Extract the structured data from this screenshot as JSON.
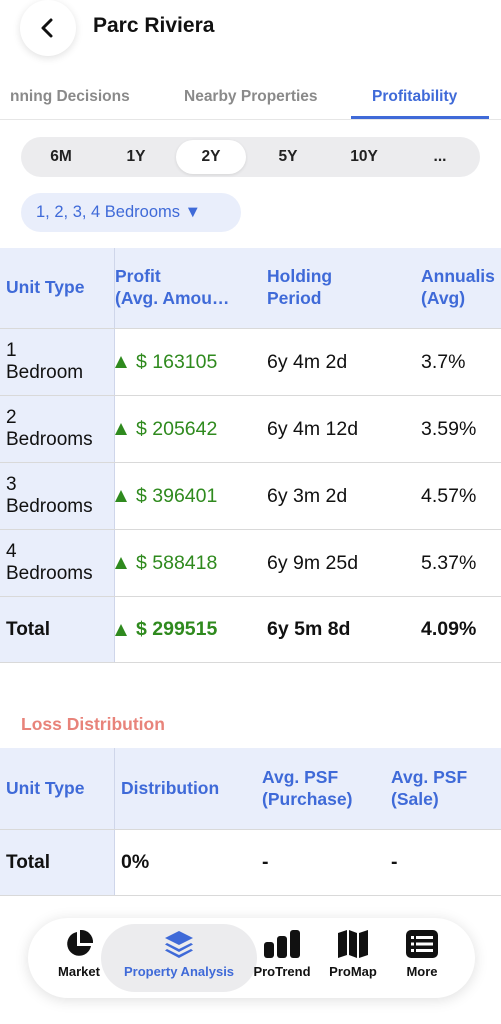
{
  "header": {
    "title": "Parc Riviera",
    "back_icon": "chevron-left-icon"
  },
  "tabs": [
    {
      "label": "nning Decisions",
      "active": false
    },
    {
      "label": "Nearby Properties",
      "active": false
    },
    {
      "label": "Profitability",
      "active": true
    }
  ],
  "periods": [
    {
      "label": "6M",
      "active": false
    },
    {
      "label": "1Y",
      "active": false
    },
    {
      "label": "2Y",
      "active": true
    },
    {
      "label": "5Y",
      "active": false
    },
    {
      "label": "10Y",
      "active": false
    },
    {
      "label": "...",
      "active": false
    }
  ],
  "bedroom_filter": {
    "label": "1, 2, 3, 4 Bedrooms ▼"
  },
  "profit_table": {
    "headers": {
      "unit_type": "Unit Type",
      "profit_1": "Profit",
      "profit_2": "(Avg. Amou…",
      "holding_1": "Holding",
      "holding_2": "Period",
      "annual_1": "Annualis",
      "annual_2": "(Avg)"
    },
    "rows": [
      {
        "unit_1": "1",
        "unit_2": "Bedroom",
        "profit": "$ 163105",
        "holding": "6y 4m 2d",
        "annualised": "3.7%"
      },
      {
        "unit_1": "2",
        "unit_2": "Bedrooms",
        "profit": "$ 205642",
        "holding": "6y 4m 12d",
        "annualised": "3.59%"
      },
      {
        "unit_1": "3",
        "unit_2": "Bedrooms",
        "profit": "$ 396401",
        "holding": "6y 3m 2d",
        "annualised": "4.57%"
      },
      {
        "unit_1": "4",
        "unit_2": "Bedrooms",
        "profit": "$ 588418",
        "holding": "6y 9m 25d",
        "annualised": "5.37%"
      }
    ],
    "total": {
      "unit": "Total",
      "profit": "$ 299515",
      "holding": "6y 5m 8d",
      "annualised": "4.09%"
    }
  },
  "loss_distribution": {
    "title": "Loss Distribution",
    "headers": {
      "unit_type": "Unit Type",
      "distribution": "Distribution",
      "purchase_1": "Avg. PSF",
      "purchase_2": "(Purchase)",
      "sale_1": "Avg. PSF",
      "sale_2": "(Sale)"
    },
    "total": {
      "unit": "Total",
      "distribution": "0%",
      "purchase": "-",
      "sale": "-"
    }
  },
  "bottom_nav": [
    {
      "label": "Market",
      "icon": "pie-chart-icon",
      "active": false
    },
    {
      "label": "Property Analysis",
      "icon": "layers-icon",
      "active": true
    },
    {
      "label": "ProTrend",
      "icon": "bar-chart-icon",
      "active": false
    },
    {
      "label": "ProMap",
      "icon": "map-icon",
      "active": false
    },
    {
      "label": "More",
      "icon": "list-icon",
      "active": false
    }
  ],
  "colors": {
    "accent": "#3f6ad8",
    "profit": "#2f8a1e",
    "loss": "#e8837a",
    "header_bg": "#e9eefb"
  }
}
